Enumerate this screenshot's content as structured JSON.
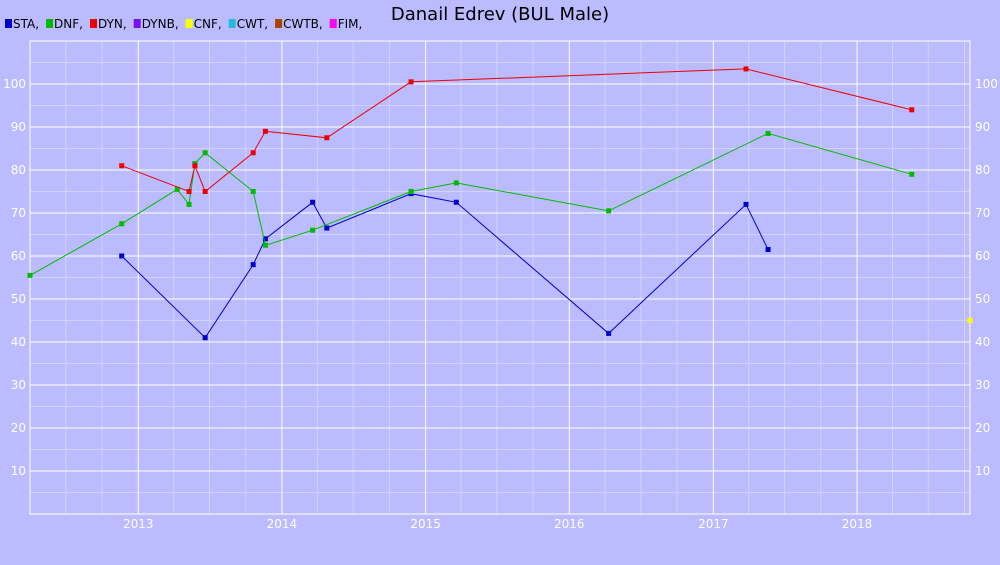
{
  "chart_data": {
    "type": "line",
    "title": "Danail Edrev (BUL Male)",
    "xlabel": "",
    "ylabel": "",
    "xlim": [
      "2012-04-01",
      "2018-10-15"
    ],
    "ylim": [
      0,
      110
    ],
    "x_ticks": [
      "2013",
      "2014",
      "2015",
      "2016",
      "2017",
      "2018"
    ],
    "y_ticks": [
      10,
      20,
      30,
      40,
      50,
      60,
      70,
      80,
      90,
      100
    ],
    "grid": true,
    "legend_position": "top-left",
    "series": [
      {
        "name": "STA",
        "color": "#0000cc",
        "points": [
          {
            "x": "2012-11-20",
            "y": 60
          },
          {
            "x": "2013-06-20",
            "y": 41
          },
          {
            "x": "2013-10-20",
            "y": 58
          },
          {
            "x": "2013-11-20",
            "y": 64
          },
          {
            "x": "2014-03-20",
            "y": 72.5
          },
          {
            "x": "2014-04-25",
            "y": 66.5
          },
          {
            "x": "2014-11-25",
            "y": 74.5
          },
          {
            "x": "2015-03-20",
            "y": 72.5
          },
          {
            "x": "2016-04-10",
            "y": 42
          },
          {
            "x": "2017-03-25",
            "y": 72
          },
          {
            "x": "2017-05-20",
            "y": 61.5
          }
        ]
      },
      {
        "name": "DNF",
        "color": "#00bb00",
        "points": [
          {
            "x": "2012-04-01",
            "y": 55.5
          },
          {
            "x": "2012-11-20",
            "y": 67.5
          },
          {
            "x": "2013-04-10",
            "y": 75.5
          },
          {
            "x": "2013-05-10",
            "y": 72
          },
          {
            "x": "2013-05-25",
            "y": 81.5
          },
          {
            "x": "2013-06-20",
            "y": 84
          },
          {
            "x": "2013-10-20",
            "y": 75
          },
          {
            "x": "2013-11-20",
            "y": 62.5
          },
          {
            "x": "2014-03-20",
            "y": 66
          },
          {
            "x": "2014-11-25",
            "y": 75
          },
          {
            "x": "2015-03-20",
            "y": 77
          },
          {
            "x": "2016-04-10",
            "y": 70.5
          },
          {
            "x": "2017-05-20",
            "y": 88.5
          },
          {
            "x": "2018-05-20",
            "y": 79
          }
        ]
      },
      {
        "name": "DYN",
        "color": "#ee0000",
        "points": [
          {
            "x": "2012-11-20",
            "y": 81
          },
          {
            "x": "2013-05-10",
            "y": 75
          },
          {
            "x": "2013-05-25",
            "y": 81
          },
          {
            "x": "2013-06-20",
            "y": 75
          },
          {
            "x": "2013-10-20",
            "y": 84
          },
          {
            "x": "2013-11-20",
            "y": 89
          },
          {
            "x": "2014-04-25",
            "y": 87.5
          },
          {
            "x": "2014-11-25",
            "y": 100.5
          },
          {
            "x": "2017-03-25",
            "y": 103.5
          },
          {
            "x": "2018-05-20",
            "y": 94
          }
        ]
      },
      {
        "name": "DYNB",
        "color": "#7711ee",
        "points": []
      },
      {
        "name": "CNF",
        "color": "#ffff00",
        "points": [
          {
            "x": "2018-10-15",
            "y": 45
          }
        ]
      },
      {
        "name": "CWT",
        "color": "#22bbdd",
        "points": []
      },
      {
        "name": "CWTB",
        "color": "#aa4400",
        "points": []
      },
      {
        "name": "FIM",
        "color": "#ff00ff",
        "points": []
      }
    ]
  }
}
